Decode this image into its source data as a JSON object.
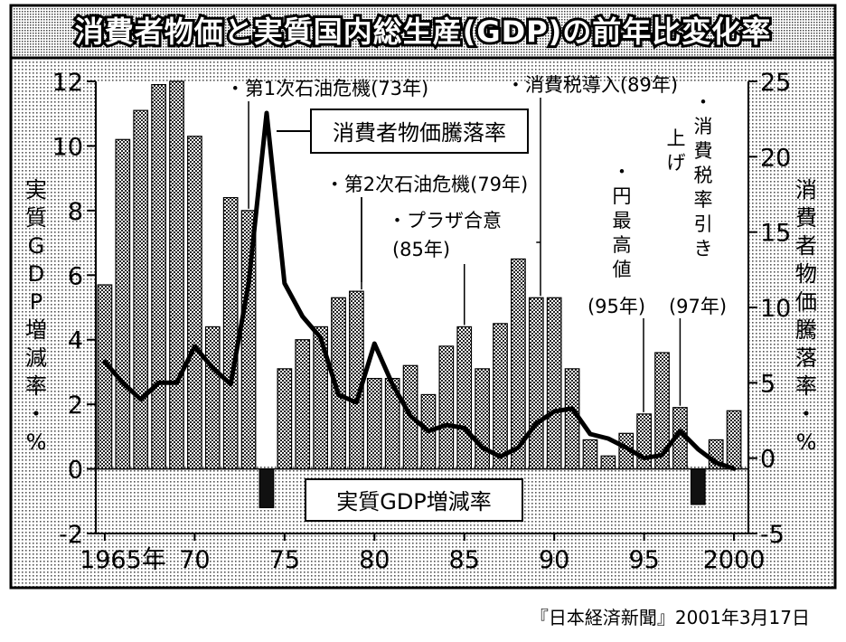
{
  "title": "消費者物価と実質国内総生産(GDP)の前年比変化率",
  "source": "『日本経済新聞』2001年3月17日",
  "chart_data": {
    "type": "bar",
    "title": "消費者物価と実質国内総生産(GDP)の前年比変化率",
    "x": [
      1965,
      1966,
      1967,
      1968,
      1969,
      1970,
      1971,
      1972,
      1973,
      1974,
      1975,
      1976,
      1977,
      1978,
      1979,
      1980,
      1981,
      1982,
      1983,
      1984,
      1985,
      1986,
      1987,
      1988,
      1989,
      1990,
      1991,
      1992,
      1993,
      1994,
      1995,
      1996,
      1997,
      1998,
      1999,
      2000
    ],
    "x_tick_labels": [
      {
        "year": 1965,
        "label": "1965年"
      },
      {
        "year": 1970,
        "label": "70"
      },
      {
        "year": 1975,
        "label": "75"
      },
      {
        "year": 1980,
        "label": "80"
      },
      {
        "year": 1985,
        "label": "85"
      },
      {
        "year": 1990,
        "label": "90"
      },
      {
        "year": 1995,
        "label": "95"
      },
      {
        "year": 2000,
        "label": "2000"
      }
    ],
    "series": [
      {
        "name": "実質GDP増減率",
        "type": "bar",
        "axis": "left",
        "values": [
          5.7,
          10.2,
          11.1,
          11.9,
          12.0,
          10.3,
          4.4,
          8.4,
          8.0,
          -1.2,
          3.1,
          4.0,
          4.4,
          5.3,
          5.5,
          2.8,
          2.8,
          3.2,
          2.3,
          3.8,
          4.4,
          3.1,
          4.5,
          6.5,
          5.3,
          5.3,
          3.1,
          0.9,
          0.4,
          1.1,
          1.7,
          3.6,
          1.9,
          -1.1,
          0.9,
          1.8
        ]
      },
      {
        "name": "消費者物価騰落率",
        "type": "line",
        "axis": "right",
        "values": [
          6.4,
          5.0,
          3.9,
          5.0,
          5.0,
          7.4,
          6.0,
          4.9,
          11.6,
          22.9,
          11.6,
          9.4,
          8.0,
          4.2,
          3.7,
          7.6,
          4.9,
          2.8,
          1.8,
          2.2,
          2.0,
          0.7,
          0.1,
          0.7,
          2.3,
          3.1,
          3.3,
          1.6,
          1.3,
          0.7,
          0.0,
          0.2,
          1.8,
          0.6,
          -0.3,
          -0.7
        ]
      }
    ],
    "y_left": {
      "label": "実質GDP増減率・%",
      "range": [
        -2,
        12
      ],
      "ticks": [
        -2,
        0,
        2,
        4,
        6,
        8,
        10,
        12
      ]
    },
    "y_right": {
      "label": "消費者物価騰落率・%",
      "range": [
        -5,
        25
      ],
      "ticks": [
        -5,
        0,
        5,
        10,
        15,
        20,
        25
      ]
    },
    "annotations": [
      {
        "year": 1973,
        "text": "・第1次石油危機(73年)",
        "vertical": false
      },
      {
        "year": 1979,
        "text": "・第2次石油危機(79年)",
        "vertical": false
      },
      {
        "year": 1985,
        "text": "・プラザ合意",
        "text2": "(85年)",
        "vertical": false
      },
      {
        "year": 1989,
        "text": "・消費税導入(89年)",
        "vertical": false
      },
      {
        "year": 1995,
        "text": "・円最高値",
        "text2": "(95年)",
        "vertical": true
      },
      {
        "year": 1997,
        "text": "・消費税率引き上げ",
        "text2": "(97年)",
        "vertical": true
      }
    ],
    "legend": {
      "line_label": "消費者物価騰落率",
      "bar_label": "実質GDP増減率"
    }
  }
}
